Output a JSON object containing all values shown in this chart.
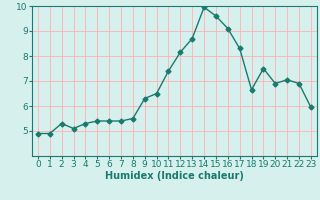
{
  "x": [
    0,
    1,
    2,
    3,
    4,
    5,
    6,
    7,
    8,
    9,
    10,
    11,
    12,
    13,
    14,
    15,
    16,
    17,
    18,
    19,
    20,
    21,
    22,
    23
  ],
  "y": [
    4.9,
    4.9,
    5.3,
    5.1,
    5.3,
    5.4,
    5.4,
    5.4,
    5.5,
    6.3,
    6.5,
    7.4,
    8.15,
    8.7,
    9.95,
    9.6,
    9.1,
    8.3,
    6.65,
    7.5,
    6.9,
    7.05,
    6.9,
    5.95
  ],
  "line_color": "#1a7a6e",
  "marker": "D",
  "markersize": 2.5,
  "linewidth": 1.0,
  "linestyle": "-",
  "xlabel": "Humidex (Indice chaleur)",
  "xlim_min": -0.5,
  "xlim_max": 23.5,
  "ylim_min": 4.0,
  "ylim_max": 10.0,
  "yticks": [
    5,
    6,
    7,
    8,
    9,
    10
  ],
  "xticks": [
    0,
    1,
    2,
    3,
    4,
    5,
    6,
    7,
    8,
    9,
    10,
    11,
    12,
    13,
    14,
    15,
    16,
    17,
    18,
    19,
    20,
    21,
    22,
    23
  ],
  "bg_color": "#d6f0ee",
  "grid_color": "#ffb0b0",
  "font_color": "#1a7a6e",
  "xlabel_fontsize": 7,
  "tick_fontsize": 6.5,
  "tick_color": "#1a7a6e"
}
